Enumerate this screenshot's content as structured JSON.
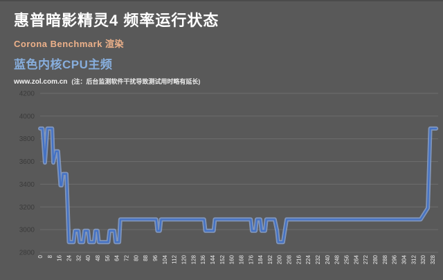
{
  "header": {
    "title": "惠普暗影精灵4 频率运行状态",
    "subtitle": "Corona Benchmark 渲染",
    "series_label": "蓝色内核CPU主频",
    "source": "www.zol.com.cn",
    "note": "(注：后台监测软件干扰导致测试用时略有延长)"
  },
  "colors": {
    "background": "#595959",
    "top_border": "#4b4b4b",
    "gridline": "#6e6e6e",
    "y_tick_text": "#3a3a3a",
    "x_tick_text": "#ececec",
    "line_core": "#4472C4",
    "line_halo": "#8EA9DB",
    "title_text": "#ffffff",
    "subtitle_text": "#EDB18A",
    "series_label_text": "#87AEDD",
    "source_text": "#f2f2f2"
  },
  "chart_data": {
    "type": "line",
    "title": "惠普暗影精灵4 频率运行状态 — Corona Benchmark 渲染",
    "xlabel": "",
    "ylabel": "",
    "xlim": [
      0,
      332
    ],
    "ylim": [
      2800,
      4200
    ],
    "grid": true,
    "legend_position": "none",
    "x_tick_rotation": -90,
    "y_ticks": [
      2800,
      3000,
      3200,
      3400,
      3600,
      3800,
      4000,
      4200
    ],
    "x_ticks": [
      0,
      8,
      16,
      24,
      32,
      40,
      48,
      56,
      64,
      72,
      80,
      88,
      96,
      104,
      112,
      120,
      128,
      136,
      144,
      152,
      160,
      168,
      176,
      184,
      192,
      200,
      208,
      216,
      224,
      232,
      240,
      248,
      256,
      264,
      272,
      280,
      288,
      296,
      304,
      312,
      320,
      328
    ],
    "series": [
      {
        "name": "蓝色内核CPU主频 (MHz)",
        "points": [
          [
            0,
            3890
          ],
          [
            2,
            3890
          ],
          [
            4,
            3590
          ],
          [
            6,
            3890
          ],
          [
            10,
            3890
          ],
          [
            11,
            3590
          ],
          [
            13,
            3690
          ],
          [
            15,
            3690
          ],
          [
            17,
            3390
          ],
          [
            18,
            3390
          ],
          [
            19,
            3490
          ],
          [
            22,
            3490
          ],
          [
            24,
            2890
          ],
          [
            28,
            2890
          ],
          [
            29,
            2990
          ],
          [
            32,
            2990
          ],
          [
            33,
            2890
          ],
          [
            36,
            2890
          ],
          [
            37,
            2990
          ],
          [
            40,
            2990
          ],
          [
            41,
            2890
          ],
          [
            45,
            2890
          ],
          [
            46,
            2990
          ],
          [
            48,
            2990
          ],
          [
            49,
            2890
          ],
          [
            57,
            2890
          ],
          [
            58,
            2990
          ],
          [
            62,
            2990
          ],
          [
            63,
            2890
          ],
          [
            66,
            2890
          ],
          [
            67,
            3090
          ],
          [
            97,
            3090
          ],
          [
            98,
            2990
          ],
          [
            100,
            2990
          ],
          [
            101,
            3090
          ],
          [
            137,
            3090
          ],
          [
            138,
            2990
          ],
          [
            145,
            2990
          ],
          [
            146,
            3090
          ],
          [
            176,
            3090
          ],
          [
            177,
            2990
          ],
          [
            180,
            2990
          ],
          [
            181,
            3090
          ],
          [
            184,
            3090
          ],
          [
            185,
            2990
          ],
          [
            188,
            2990
          ],
          [
            189,
            3090
          ],
          [
            196,
            3090
          ],
          [
            198,
            2990
          ],
          [
            199,
            2890
          ],
          [
            203,
            2890
          ],
          [
            206,
            3090
          ],
          [
            318,
            3090
          ],
          [
            324,
            3190
          ],
          [
            326,
            3890
          ],
          [
            331,
            3890
          ]
        ]
      }
    ]
  }
}
